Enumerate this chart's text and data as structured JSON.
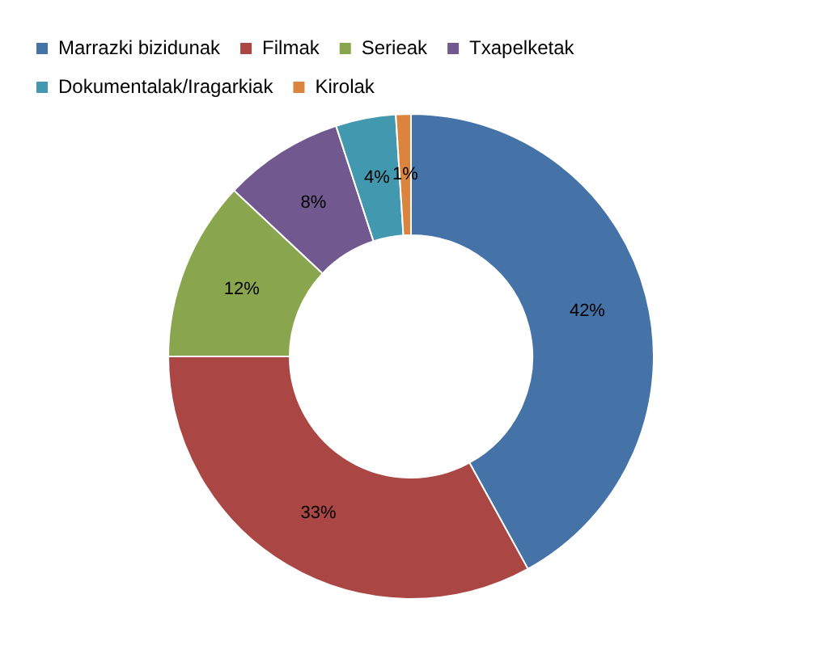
{
  "chart_data": {
    "type": "donut",
    "categories": [
      "Marrazki bizidunak",
      "Filmak",
      "Serieak",
      "Txapelketak",
      "Dokumentalak/Iragarkiak",
      "Kirolak"
    ],
    "values": [
      42,
      33,
      12,
      8,
      4,
      1
    ],
    "colors": [
      "#4572a7",
      "#aa4643",
      "#89a54e",
      "#71588f",
      "#4198af",
      "#db843d"
    ],
    "value_labels": [
      "42%",
      "33%",
      "12%",
      "8%",
      "4%",
      "1%"
    ],
    "legend": "top"
  }
}
